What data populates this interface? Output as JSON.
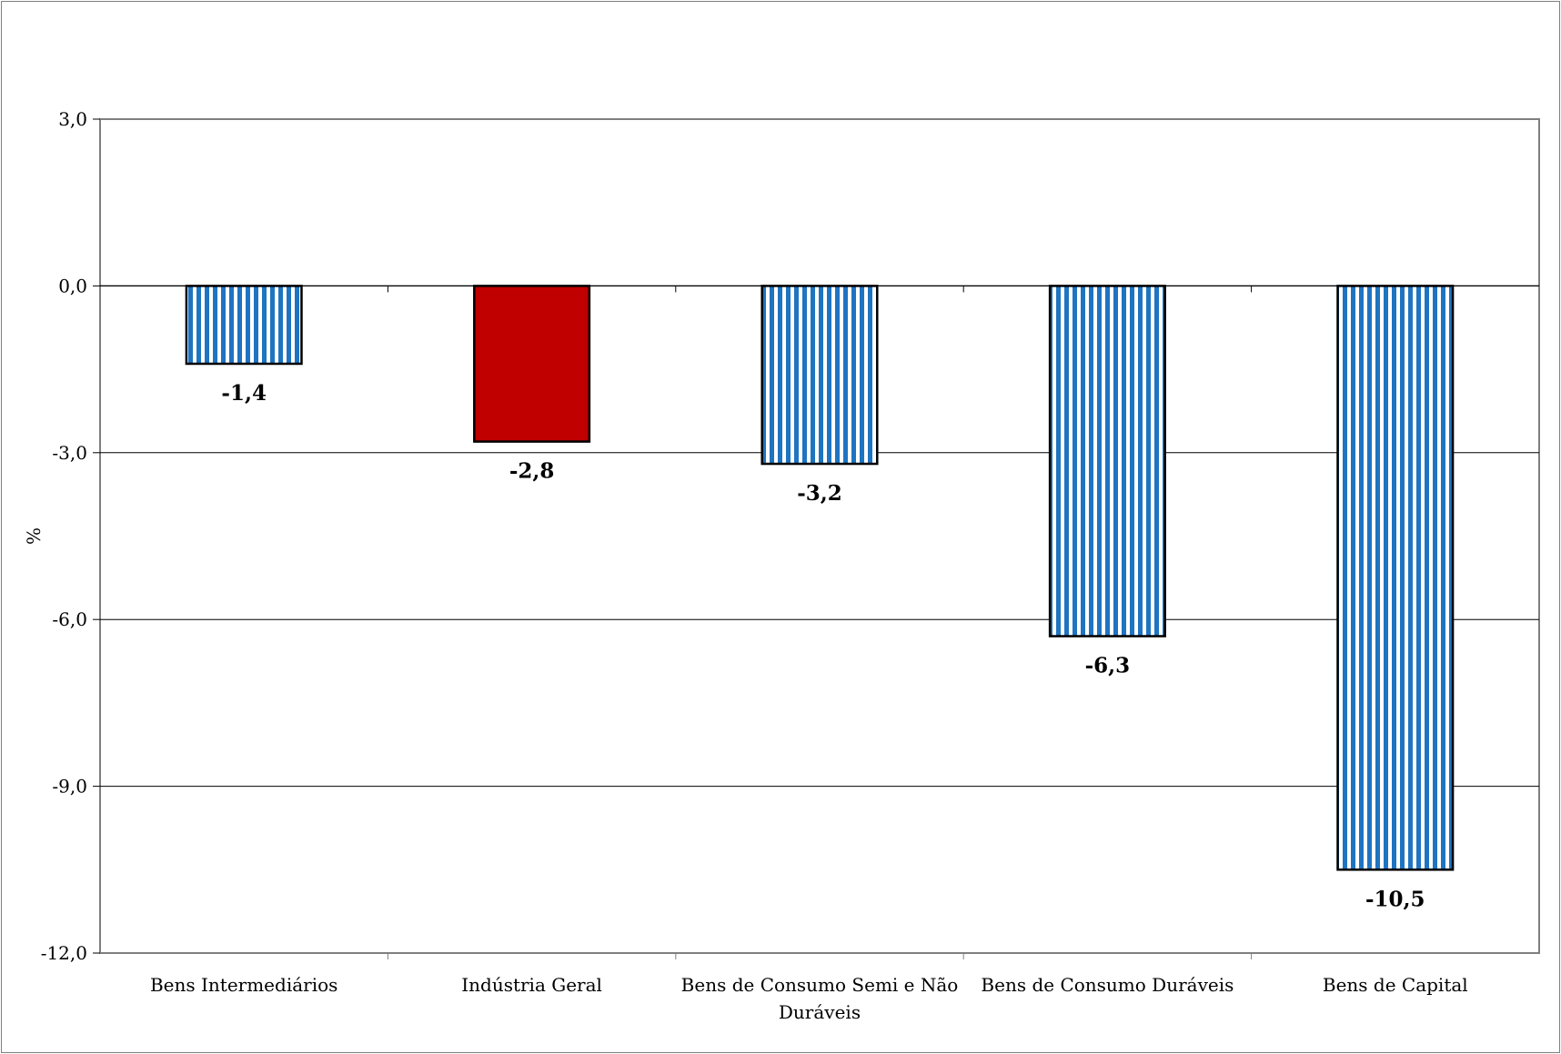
{
  "chart_data": {
    "type": "bar",
    "title": "",
    "xlabel": "",
    "ylabel": "%",
    "categories": [
      "Bens Intermediários",
      "Indústria Geral",
      "Bens de Consumo Semi e Não Duráveis",
      "Bens de Consumo Duráveis",
      "Bens de Capital"
    ],
    "values": [
      -1.4,
      -2.8,
      -3.2,
      -6.3,
      -10.5
    ],
    "data_labels": [
      "-1,4",
      "-2,8",
      "-3,2",
      "-6,3",
      "-10,5"
    ],
    "bar_styles": [
      "striped",
      "solid",
      "striped",
      "striped",
      "striped"
    ],
    "ylim": [
      -12,
      3
    ],
    "yticks": [
      3,
      0,
      -3,
      -6,
      -9,
      -12
    ],
    "ytick_labels": [
      "3,0",
      "0,0",
      "-3,0",
      "-6,0",
      "-9,0",
      "-12,0"
    ],
    "grid": true,
    "legend": "none",
    "colors": {
      "stripe_blue": "#1f74c2",
      "stripe_white": "#ffffff",
      "highlight_red": "#c00000",
      "gridline": "#000000",
      "frame": "#7f7f7f"
    }
  }
}
